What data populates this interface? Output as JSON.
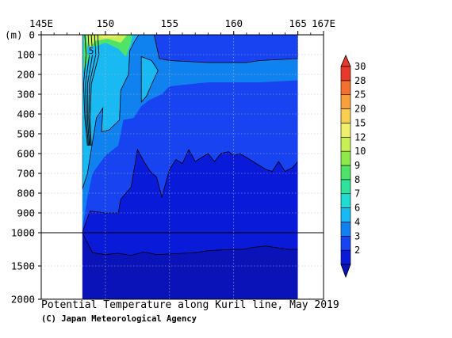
{
  "chart_data": {
    "type": "contour",
    "title": "Potential Temperature along Kuril line, May 2019",
    "credit": "(C) Japan Meteorological Agency",
    "y_unit_label": "(m)",
    "x_range": [
      145,
      167
    ],
    "y_range": [
      0,
      2000
    ],
    "y_axis_break_depth": 1000,
    "x_ticks": [
      {
        "value": 145,
        "label": "145E"
      },
      {
        "value": 150,
        "label": "150"
      },
      {
        "value": 155,
        "label": "155"
      },
      {
        "value": 160,
        "label": "160"
      },
      {
        "value": 165,
        "label": "165"
      },
      {
        "value": 167,
        "label": "167E"
      }
    ],
    "y_ticks": [
      {
        "value": 0,
        "label": "0"
      },
      {
        "value": 100,
        "label": "100"
      },
      {
        "value": 200,
        "label": "200"
      },
      {
        "value": 300,
        "label": "300"
      },
      {
        "value": 400,
        "label": "400"
      },
      {
        "value": 500,
        "label": "500"
      },
      {
        "value": 600,
        "label": "600"
      },
      {
        "value": 700,
        "label": "700"
      },
      {
        "value": 800,
        "label": "800"
      },
      {
        "value": 900,
        "label": "900"
      },
      {
        "value": 1000,
        "label": "1000"
      },
      {
        "value": 1500,
        "label": "1500"
      },
      {
        "value": 2000,
        "label": "2000"
      }
    ],
    "colorbar": [
      {
        "label": "2",
        "color": "#0a1ad9"
      },
      {
        "label": "3",
        "color": "#1744f0"
      },
      {
        "label": "4",
        "color": "#0f82f0"
      },
      {
        "label": "6",
        "color": "#19b9f3"
      },
      {
        "label": "7",
        "color": "#21dcd2"
      },
      {
        "label": "8",
        "color": "#2fe39a"
      },
      {
        "label": "9",
        "color": "#4fe36a"
      },
      {
        "label": "10",
        "color": "#8fe84c"
      },
      {
        "label": "12",
        "color": "#c8ef53"
      },
      {
        "label": "15",
        "color": "#f1f06a"
      },
      {
        "label": "20",
        "color": "#f8cf4e"
      },
      {
        "label": "25",
        "color": "#f8a03c"
      },
      {
        "label": "28",
        "color": "#f4702f"
      },
      {
        "label": "30",
        "color": "#e8392a"
      }
    ],
    "annotations": [
      {
        "text": "5",
        "lon": 148.9,
        "depth": 90
      }
    ],
    "isotherms": [
      {
        "name": "2C",
        "points": [
          [
            148.2,
            1000
          ],
          [
            149.0,
            1300
          ],
          [
            150.0,
            1330
          ],
          [
            151.0,
            1310
          ],
          [
            152.0,
            1340
          ],
          [
            153.0,
            1290
          ],
          [
            154.0,
            1330
          ],
          [
            155.0,
            1320
          ],
          [
            156.0,
            1310
          ],
          [
            157.0,
            1300
          ],
          [
            158.0,
            1270
          ],
          [
            159.0,
            1260
          ],
          [
            160.0,
            1250
          ],
          [
            160.8,
            1250
          ],
          [
            161.5,
            1220
          ],
          [
            162.5,
            1200
          ],
          [
            163.5,
            1230
          ],
          [
            164.2,
            1250
          ],
          [
            165.0,
            1250
          ]
        ]
      },
      {
        "name": "3C",
        "points": [
          [
            148.2,
            1000
          ],
          [
            148.8,
            890
          ],
          [
            150.0,
            900
          ],
          [
            151.0,
            900
          ],
          [
            151.2,
            830
          ],
          [
            152.0,
            770
          ],
          [
            152.5,
            580
          ],
          [
            153.0,
            640
          ],
          [
            153.5,
            690
          ],
          [
            154.0,
            720
          ],
          [
            154.4,
            820
          ],
          [
            155.0,
            680
          ],
          [
            155.5,
            630
          ],
          [
            156.0,
            650
          ],
          [
            156.5,
            580
          ],
          [
            157.0,
            640
          ],
          [
            157.5,
            620
          ],
          [
            158.0,
            600
          ],
          [
            158.5,
            640
          ],
          [
            159.0,
            600
          ],
          [
            159.6,
            590
          ],
          [
            160.0,
            610
          ],
          [
            160.5,
            600
          ],
          [
            161.0,
            620
          ],
          [
            161.5,
            640
          ],
          [
            162.0,
            660
          ],
          [
            162.5,
            680
          ],
          [
            163.0,
            690
          ],
          [
            163.5,
            640
          ],
          [
            164.0,
            690
          ],
          [
            164.6,
            670
          ],
          [
            165.0,
            640
          ]
        ]
      },
      {
        "name": "4C",
        "points": [
          [
            152.6,
            0
          ],
          [
            152.3,
            30
          ],
          [
            151.9,
            80
          ],
          [
            151.8,
            200
          ],
          [
            151.2,
            280
          ],
          [
            151.1,
            430
          ],
          [
            150.3,
            480
          ],
          [
            149.7,
            490
          ],
          [
            149.8,
            370
          ],
          [
            149.3,
            420
          ],
          [
            148.9,
            580
          ],
          [
            148.6,
            700
          ],
          [
            148.2,
            780
          ],
          [
            148.2,
            0
          ],
          [
            152.6,
            0
          ]
        ]
      },
      {
        "name": "4C-patch-1",
        "points": [
          [
            153.8,
            0
          ],
          [
            154.2,
            120
          ],
          [
            155.0,
            130
          ],
          [
            158.0,
            140
          ],
          [
            161.0,
            140
          ],
          [
            162.0,
            130
          ],
          [
            165.0,
            120
          ],
          [
            165.0,
            0
          ],
          [
            153.8,
            0
          ]
        ]
      },
      {
        "name": "4C-patch-2",
        "points": [
          [
            152.8,
            110
          ],
          [
            153.6,
            130
          ],
          [
            154.1,
            180
          ],
          [
            153.6,
            250
          ],
          [
            153.2,
            310
          ],
          [
            152.8,
            340
          ],
          [
            152.8,
            110
          ]
        ]
      }
    ]
  }
}
